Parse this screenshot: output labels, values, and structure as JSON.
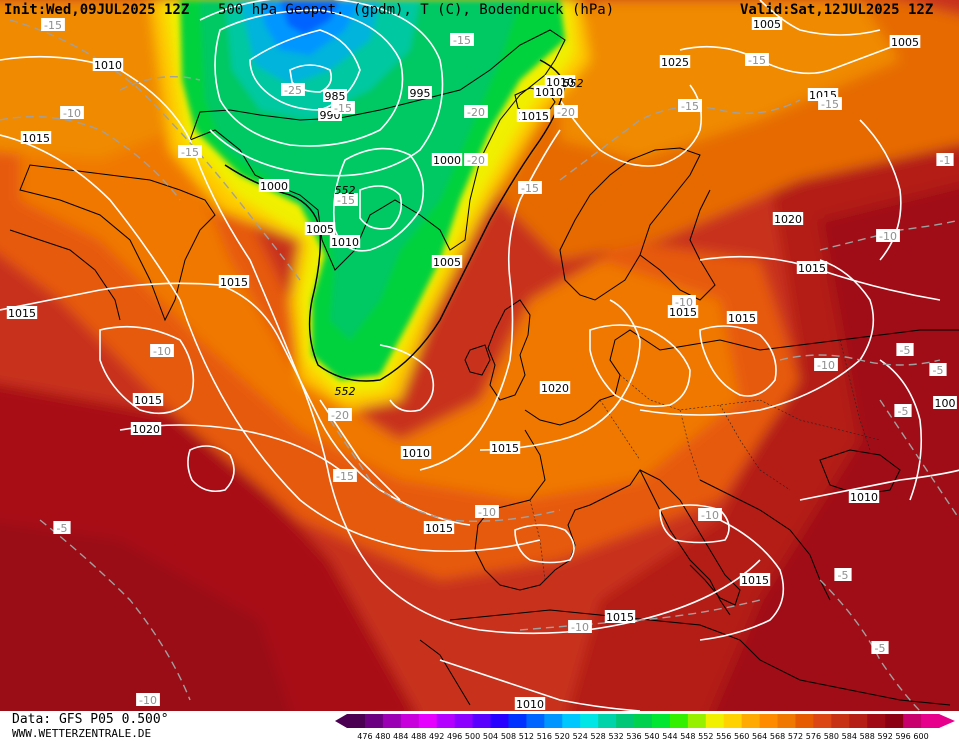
{
  "header": {
    "init_label": "Init:",
    "init_value": "Wed,09JUL2025 12Z",
    "title": "500 hPa Geopot. (gpdm), T (C), Bodendruck (hPa)",
    "valid_label": "Valid:",
    "valid_value": "Sat,12JUL2025 12Z"
  },
  "footer": {
    "source": "Data: GFS P05 0.500°",
    "url": "WWW.WETTERZENTRALE.DE"
  },
  "colorbar": {
    "ticks": [
      "476",
      "480",
      "484",
      "488",
      "492",
      "496",
      "500",
      "504",
      "508",
      "512",
      "516",
      "520",
      "524",
      "528",
      "532",
      "536",
      "540",
      "544",
      "548",
      "552",
      "556",
      "560",
      "564",
      "568",
      "572",
      "576",
      "580",
      "584",
      "588",
      "592",
      "596",
      "600"
    ],
    "colors": [
      "#4b0052",
      "#6b0080",
      "#9b00b4",
      "#c800dc",
      "#e600ff",
      "#b400ff",
      "#8c00ff",
      "#5a00ff",
      "#2800ff",
      "#0032ff",
      "#0064ff",
      "#0096ff",
      "#00c8ff",
      "#00e6e6",
      "#00d2aa",
      "#00c878",
      "#00d250",
      "#00e632",
      "#32f000",
      "#96f000",
      "#f0f000",
      "#ffd200",
      "#ffaa00",
      "#ff8c00",
      "#f07800",
      "#e65a00",
      "#dc4614",
      "#c83214",
      "#b41e14",
      "#a00a14",
      "#8c0014",
      "#c8006e",
      "#e6008c"
    ]
  },
  "pressure_labels": [
    {
      "text": "1010"
    },
    {
      "text": "1015"
    },
    {
      "text": "1015"
    },
    {
      "text": "1005"
    },
    {
      "text": "1010"
    },
    {
      "text": "985"
    },
    {
      "text": "990"
    },
    {
      "text": "995"
    },
    {
      "text": "1000"
    },
    {
      "text": "1000"
    },
    {
      "text": "1005"
    },
    {
      "text": "1010"
    },
    {
      "text": "1005"
    },
    {
      "text": "1010"
    },
    {
      "text": "1015"
    },
    {
      "text": "1025"
    },
    {
      "text": "1005"
    },
    {
      "text": "1010"
    },
    {
      "text": "1015"
    },
    {
      "text": "1020"
    },
    {
      "text": "1015"
    },
    {
      "text": "1015"
    },
    {
      "text": "1015"
    },
    {
      "text": "1015"
    },
    {
      "text": "1015"
    },
    {
      "text": "1020"
    },
    {
      "text": "1015"
    },
    {
      "text": "1020"
    },
    {
      "text": "1010"
    },
    {
      "text": "1015"
    },
    {
      "text": "1015"
    },
    {
      "text": "1010"
    },
    {
      "text": "1015"
    },
    {
      "text": "1010"
    },
    {
      "text": "1005"
    },
    {
      "text": "100"
    }
  ],
  "temp_labels": [
    {
      "text": "-15"
    },
    {
      "text": "-10"
    },
    {
      "text": "-15"
    },
    {
      "text": "-25"
    },
    {
      "text": "-15"
    },
    {
      "text": "-20"
    },
    {
      "text": "-20"
    },
    {
      "text": "-20"
    },
    {
      "text": "-15"
    },
    {
      "text": "-15"
    },
    {
      "text": "-15"
    },
    {
      "text": "-15"
    },
    {
      "text": "-15"
    },
    {
      "text": "-10"
    },
    {
      "text": "-10"
    },
    {
      "text": "-20"
    },
    {
      "text": "-15"
    },
    {
      "text": "-10"
    },
    {
      "text": "-10"
    },
    {
      "text": "-10"
    },
    {
      "text": "-10"
    },
    {
      "text": "-5"
    },
    {
      "text": "-5"
    },
    {
      "text": "-5"
    },
    {
      "text": "-5"
    },
    {
      "text": "-5"
    },
    {
      "text": "-5"
    },
    {
      "text": "-10"
    },
    {
      "text": "-15"
    },
    {
      "text": "-1"
    },
    {
      "text": "-15"
    },
    {
      "text": "-10"
    }
  ],
  "geo_labels": [
    {
      "text": "552"
    },
    {
      "text": "552"
    },
    {
      "text": "552"
    }
  ]
}
